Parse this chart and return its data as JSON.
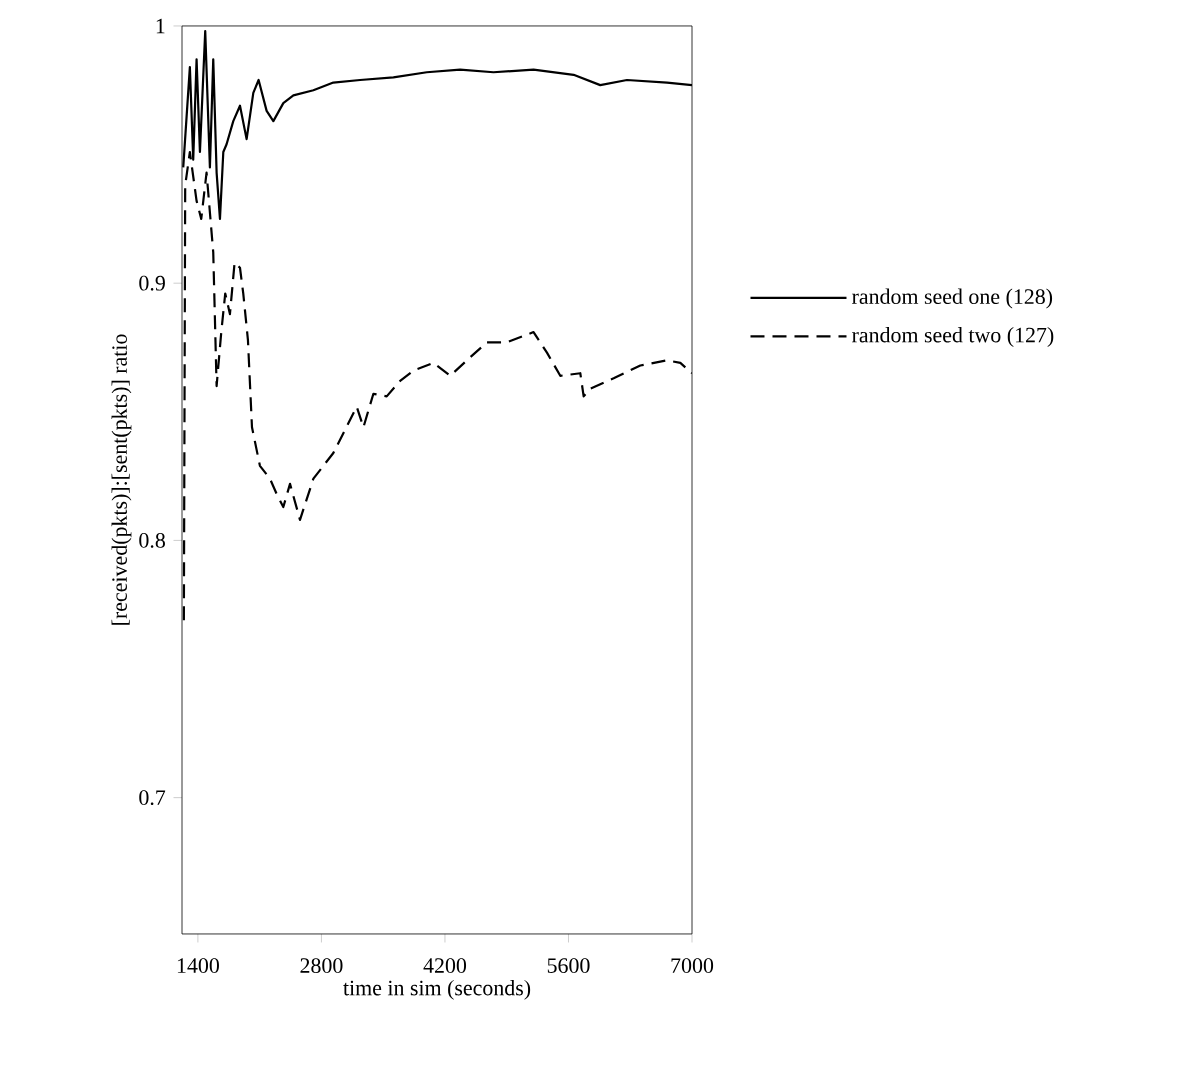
{
  "chart_data": {
    "type": "line",
    "xlabel": "time in sim (seconds)",
    "ylabel": "[received(pkts)]:[sent(pkts)] ratio",
    "xlim": [
      1220,
      7000
    ],
    "ylim": [
      0.647,
      1
    ],
    "xticks": [
      1400,
      2800,
      4200,
      5600,
      7000
    ],
    "yticks": [
      0.7,
      0.8,
      0.9,
      1
    ],
    "legend": "right",
    "marker": "none",
    "series": [
      {
        "name": "random seed one (128)",
        "color": "#000000",
        "line_style": "solid",
        "x": [
          1234,
          1309,
          1347,
          1385,
          1423,
          1483,
          1536,
          1574,
          1612,
          1650,
          1688,
          1725,
          1801,
          1877,
          1952,
          2028,
          2088,
          2179,
          2255,
          2368,
          2482,
          2709,
          2935,
          3238,
          3616,
          3994,
          4372,
          4750,
          5204,
          5658,
          5960,
          6263,
          6717,
          7000
        ],
        "values": [
          0.945,
          0.984,
          0.948,
          0.987,
          0.951,
          0.998,
          0.945,
          0.987,
          0.943,
          0.925,
          0.951,
          0.954,
          0.963,
          0.969,
          0.956,
          0.974,
          0.979,
          0.967,
          0.963,
          0.97,
          0.973,
          0.975,
          0.978,
          0.979,
          0.98,
          0.982,
          0.983,
          0.982,
          0.983,
          0.981,
          0.977,
          0.979,
          0.978,
          0.977
        ]
      },
      {
        "name": "random seed two (127)",
        "color": "#000000",
        "line_style": "dashed",
        "x": [
          1241,
          1256,
          1309,
          1385,
          1438,
          1498,
          1574,
          1612,
          1665,
          1710,
          1763,
          1816,
          1877,
          1914,
          1967,
          2013,
          2103,
          2217,
          2293,
          2368,
          2444,
          2557,
          2709,
          2935,
          3200,
          3276,
          3389,
          3540,
          3692,
          3843,
          4070,
          4259,
          4448,
          4675,
          4902,
          5204,
          5356,
          5507,
          5734,
          5772,
          5847,
          6112,
          6414,
          6717,
          6868,
          7000
        ],
        "values": [
          0.769,
          0.938,
          0.951,
          0.932,
          0.925,
          0.943,
          0.912,
          0.86,
          0.881,
          0.896,
          0.888,
          0.908,
          0.906,
          0.896,
          0.878,
          0.844,
          0.829,
          0.824,
          0.818,
          0.813,
          0.822,
          0.808,
          0.824,
          0.834,
          0.852,
          0.844,
          0.857,
          0.856,
          0.862,
          0.866,
          0.869,
          0.864,
          0.87,
          0.877,
          0.877,
          0.881,
          0.873,
          0.864,
          0.865,
          0.856,
          0.859,
          0.863,
          0.868,
          0.87,
          0.869,
          0.865
        ]
      }
    ]
  }
}
